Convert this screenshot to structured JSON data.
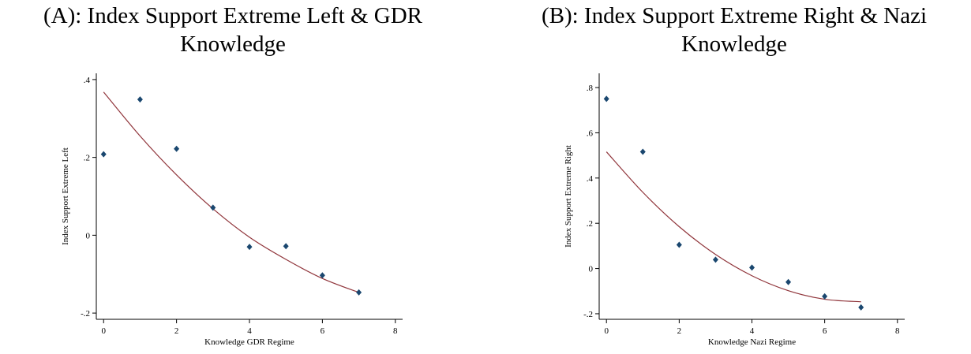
{
  "chart_data": [
    {
      "type": "scatter",
      "title": "(A): Index Support Extreme Left & GDR Knowledge",
      "x_label": "Knowledge GDR Regime",
      "y_label": "Index Support Extreme Left",
      "x": [
        0,
        1,
        2,
        3,
        4,
        5,
        6,
        7
      ],
      "values": [
        0.208,
        0.349,
        0.222,
        0.071,
        -0.03,
        -0.028,
        -0.103,
        -0.147
      ],
      "color": "#1a476f",
      "fit": {
        "x": [
          0,
          1,
          2,
          3,
          4,
          5,
          6,
          7
        ],
        "values": [
          0.368,
          0.255,
          0.155,
          0.068,
          -0.005,
          -0.062,
          -0.111,
          -0.147
        ],
        "color": "#90353b"
      },
      "xlim": [
        -0.2,
        8.2
      ],
      "xticks": [
        0,
        2,
        4,
        6,
        8
      ],
      "ylim": [
        -0.216,
        0.416
      ],
      "yticks": [
        {
          "value": -0.2,
          "label": "-.2"
        },
        0,
        {
          "value": 0.2,
          "label": ".2"
        },
        {
          "value": 0.4,
          "label": ".4"
        }
      ]
    },
    {
      "type": "scatter",
      "title": "(B): Index Support Extreme Right & Nazi Knowledge",
      "x_label": "Knowledge Nazi Regime",
      "y_label": "Index Support Extreme Right",
      "x": [
        0,
        1,
        2,
        3,
        4,
        5,
        6,
        7
      ],
      "values": [
        0.75,
        0.516,
        0.105,
        0.039,
        0.004,
        -0.06,
        -0.123,
        -0.172
      ],
      "color": "#1a476f",
      "fit": {
        "x": [
          0,
          1,
          2,
          3,
          4,
          5,
          6,
          7
        ],
        "values": [
          0.516,
          0.337,
          0.185,
          0.062,
          -0.032,
          -0.098,
          -0.136,
          -0.147
        ],
        "color": "#90353b"
      },
      "xlim": [
        -0.2,
        8.2
      ],
      "xticks": [
        0,
        2,
        4,
        6,
        8
      ],
      "ylim": [
        -0.2246,
        0.863
      ],
      "yticks": [
        {
          "value": -0.2,
          "label": "-.2"
        },
        0,
        {
          "value": 0.2,
          "label": ".2"
        },
        {
          "value": 0.4,
          "label": ".4"
        },
        {
          "value": 0.6,
          "label": ".6"
        },
        {
          "value": 0.8,
          "label": ".8"
        }
      ]
    }
  ]
}
